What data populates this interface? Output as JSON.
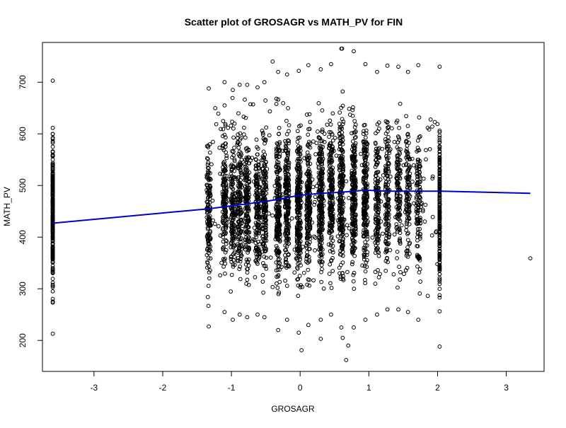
{
  "chart_data": {
    "type": "scatter",
    "title": "Scatter plot of GROSAGR vs MATH_PV for FIN",
    "xlabel": "GROSAGR",
    "ylabel": "MATH_PV",
    "xlim": [
      -3.75,
      3.55
    ],
    "ylim": [
      140,
      777
    ],
    "xticks": [
      -3,
      -2,
      -1,
      0,
      1,
      2,
      3
    ],
    "yticks": [
      200,
      300,
      400,
      500,
      600,
      700
    ],
    "grid": false,
    "legend": "none",
    "series": [
      {
        "type": "scatter",
        "marker": "open-circle",
        "color": "#000000",
        "columns": [
          {
            "x": -3.6,
            "min": 213,
            "max": 703,
            "n": 280
          },
          {
            "x": -1.33,
            "min": 227,
            "max": 688,
            "n": 140
          },
          {
            "x": -1.1,
            "min": 255,
            "max": 700,
            "n": 150
          },
          {
            "x": -0.98,
            "min": 240,
            "max": 685,
            "n": 150
          },
          {
            "x": -0.88,
            "min": 250,
            "max": 695,
            "n": 150
          },
          {
            "x": -0.77,
            "min": 245,
            "max": 695,
            "n": 160
          },
          {
            "x": -0.62,
            "min": 250,
            "max": 690,
            "n": 140
          },
          {
            "x": -0.52,
            "min": 245,
            "max": 700,
            "n": 160
          },
          {
            "x": -0.32,
            "min": 220,
            "max": 720,
            "n": 220
          },
          {
            "x": -0.19,
            "min": 240,
            "max": 715,
            "n": 200
          },
          {
            "x": -0.02,
            "min": 215,
            "max": 722,
            "n": 240
          },
          {
            "x": 0.12,
            "min": 230,
            "max": 733,
            "n": 200
          },
          {
            "x": 0.3,
            "min": 240,
            "max": 725,
            "n": 230
          },
          {
            "x": 0.45,
            "min": 250,
            "max": 735,
            "n": 200
          },
          {
            "x": 0.6,
            "min": 225,
            "max": 765,
            "n": 220
          },
          {
            "x": 0.78,
            "min": 225,
            "max": 760,
            "n": 230
          },
          {
            "x": 0.95,
            "min": 240,
            "max": 735,
            "n": 200
          },
          {
            "x": 1.12,
            "min": 250,
            "max": 720,
            "n": 140
          },
          {
            "x": 1.27,
            "min": 260,
            "max": 732,
            "n": 130
          },
          {
            "x": 1.43,
            "min": 260,
            "max": 730,
            "n": 120
          },
          {
            "x": 1.57,
            "min": 255,
            "max": 720,
            "n": 110
          },
          {
            "x": 1.72,
            "min": 240,
            "max": 733,
            "n": 110
          },
          {
            "x": 2.03,
            "min": 188,
            "max": 730,
            "n": 200
          }
        ],
        "points": [
          [
            3.35,
            359
          ],
          [
            0.02,
            181
          ],
          [
            0.67,
            162
          ],
          [
            0.7,
            190
          ],
          [
            0.3,
            203
          ],
          [
            0.62,
            205
          ],
          [
            -0.4,
            740
          ],
          [
            0.61,
            765
          ]
        ]
      },
      {
        "type": "line",
        "name": "",
        "color": "#0000cc",
        "x": [
          -3.6,
          -1.33,
          -0.98,
          -0.62,
          -0.32,
          -0.02,
          0.3,
          0.6,
          0.95,
          1.27,
          1.57,
          2.03,
          3.35
        ],
        "y": [
          427,
          455,
          461,
          467,
          473,
          481,
          485,
          487,
          491,
          489,
          489,
          489,
          485
        ]
      }
    ]
  }
}
